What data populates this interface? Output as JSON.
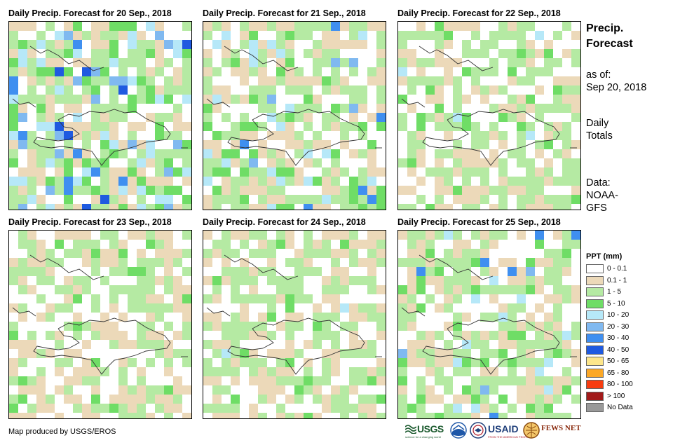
{
  "panels": [
    {
      "title": "Daily Precip. Forecast for 20 Sep., 2018"
    },
    {
      "title": "Daily Precip. Forecast for 21 Sep., 2018"
    },
    {
      "title": "Daily Precip. Forecast for 22 Sep., 2018"
    },
    {
      "title": "Daily Precip. Forecast for 23 Sep., 2018"
    },
    {
      "title": "Daily Precip. Forecast for 24 Sep., 2018"
    },
    {
      "title": "Daily Precip. Forecast for 25 Sep., 2018"
    }
  ],
  "info": {
    "title_line1": "Precip.",
    "title_line2": "Forecast",
    "as_of_label": "as of:",
    "as_of_date": "Sep 20, 2018",
    "totals_line1": "Daily",
    "totals_line2": "Totals",
    "data_line1": "Data:",
    "data_line2": "NOAA-",
    "data_line3": "GFS"
  },
  "legend": {
    "title": "PPT (mm)",
    "items": [
      {
        "label": "0 - 0.1",
        "color": "#ffffff"
      },
      {
        "label": "0.1 - 1",
        "color": "#ecd9b9"
      },
      {
        "label": "1 - 5",
        "color": "#b5eaa3"
      },
      {
        "label": "5 - 10",
        "color": "#6fdd66"
      },
      {
        "label": "10 - 20",
        "color": "#b6e8f8"
      },
      {
        "label": "20 - 30",
        "color": "#80b9f0"
      },
      {
        "label": "30 - 40",
        "color": "#3f8ff0"
      },
      {
        "label": "40 - 50",
        "color": "#1f5ae0"
      },
      {
        "label": "50 - 65",
        "color": "#fde68a"
      },
      {
        "label": "65 - 80",
        "color": "#fca826"
      },
      {
        "label": "80 - 100",
        "color": "#f83c10"
      },
      {
        "label": "> 100",
        "color": "#a21a1a"
      },
      {
        "label": "No Data",
        "color": "#999999"
      }
    ]
  },
  "credit": "Map produced by USGS/EROS",
  "logos": {
    "usgs": "USGS",
    "usgs_tagline": "science for a changing world",
    "usaid": "USAID",
    "usaid_tagline": "FROM THE AMERICAN PEOPLE",
    "fewsnet": "FEWS NET"
  }
}
